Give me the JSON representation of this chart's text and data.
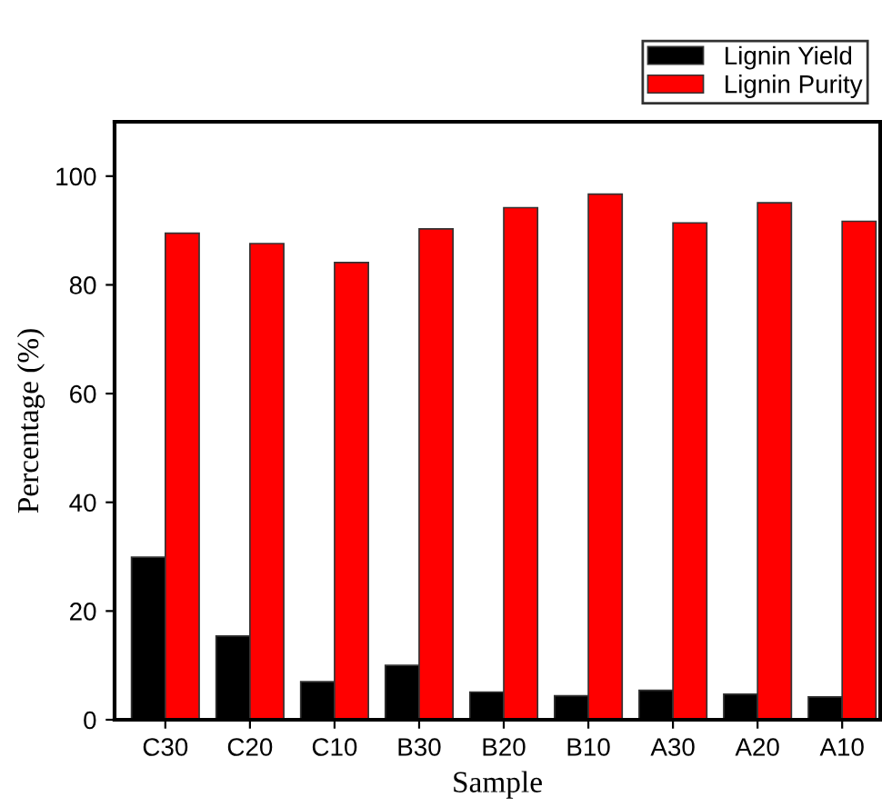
{
  "chart_data": {
    "type": "bar",
    "xlabel": "Sample",
    "ylabel": "Percentage (%)",
    "categories": [
      "C30",
      "C20",
      "C10",
      "B30",
      "B20",
      "B10",
      "A30",
      "A20",
      "A10"
    ],
    "series": [
      {
        "name": "Lignin Yield",
        "color": "#000000",
        "values": [
          29.9,
          15.4,
          7.0,
          10.0,
          5.1,
          4.4,
          5.4,
          4.7,
          4.2
        ]
      },
      {
        "name": "Lignin Purity",
        "color": "#ff0000",
        "values": [
          89.5,
          87.6,
          84.1,
          90.3,
          94.2,
          96.7,
          91.4,
          95.1,
          91.7
        ]
      }
    ],
    "ylim": [
      0,
      110
    ],
    "yticks": [
      0,
      20,
      40,
      60,
      80,
      100
    ],
    "grid": false,
    "legend": "top right"
  }
}
